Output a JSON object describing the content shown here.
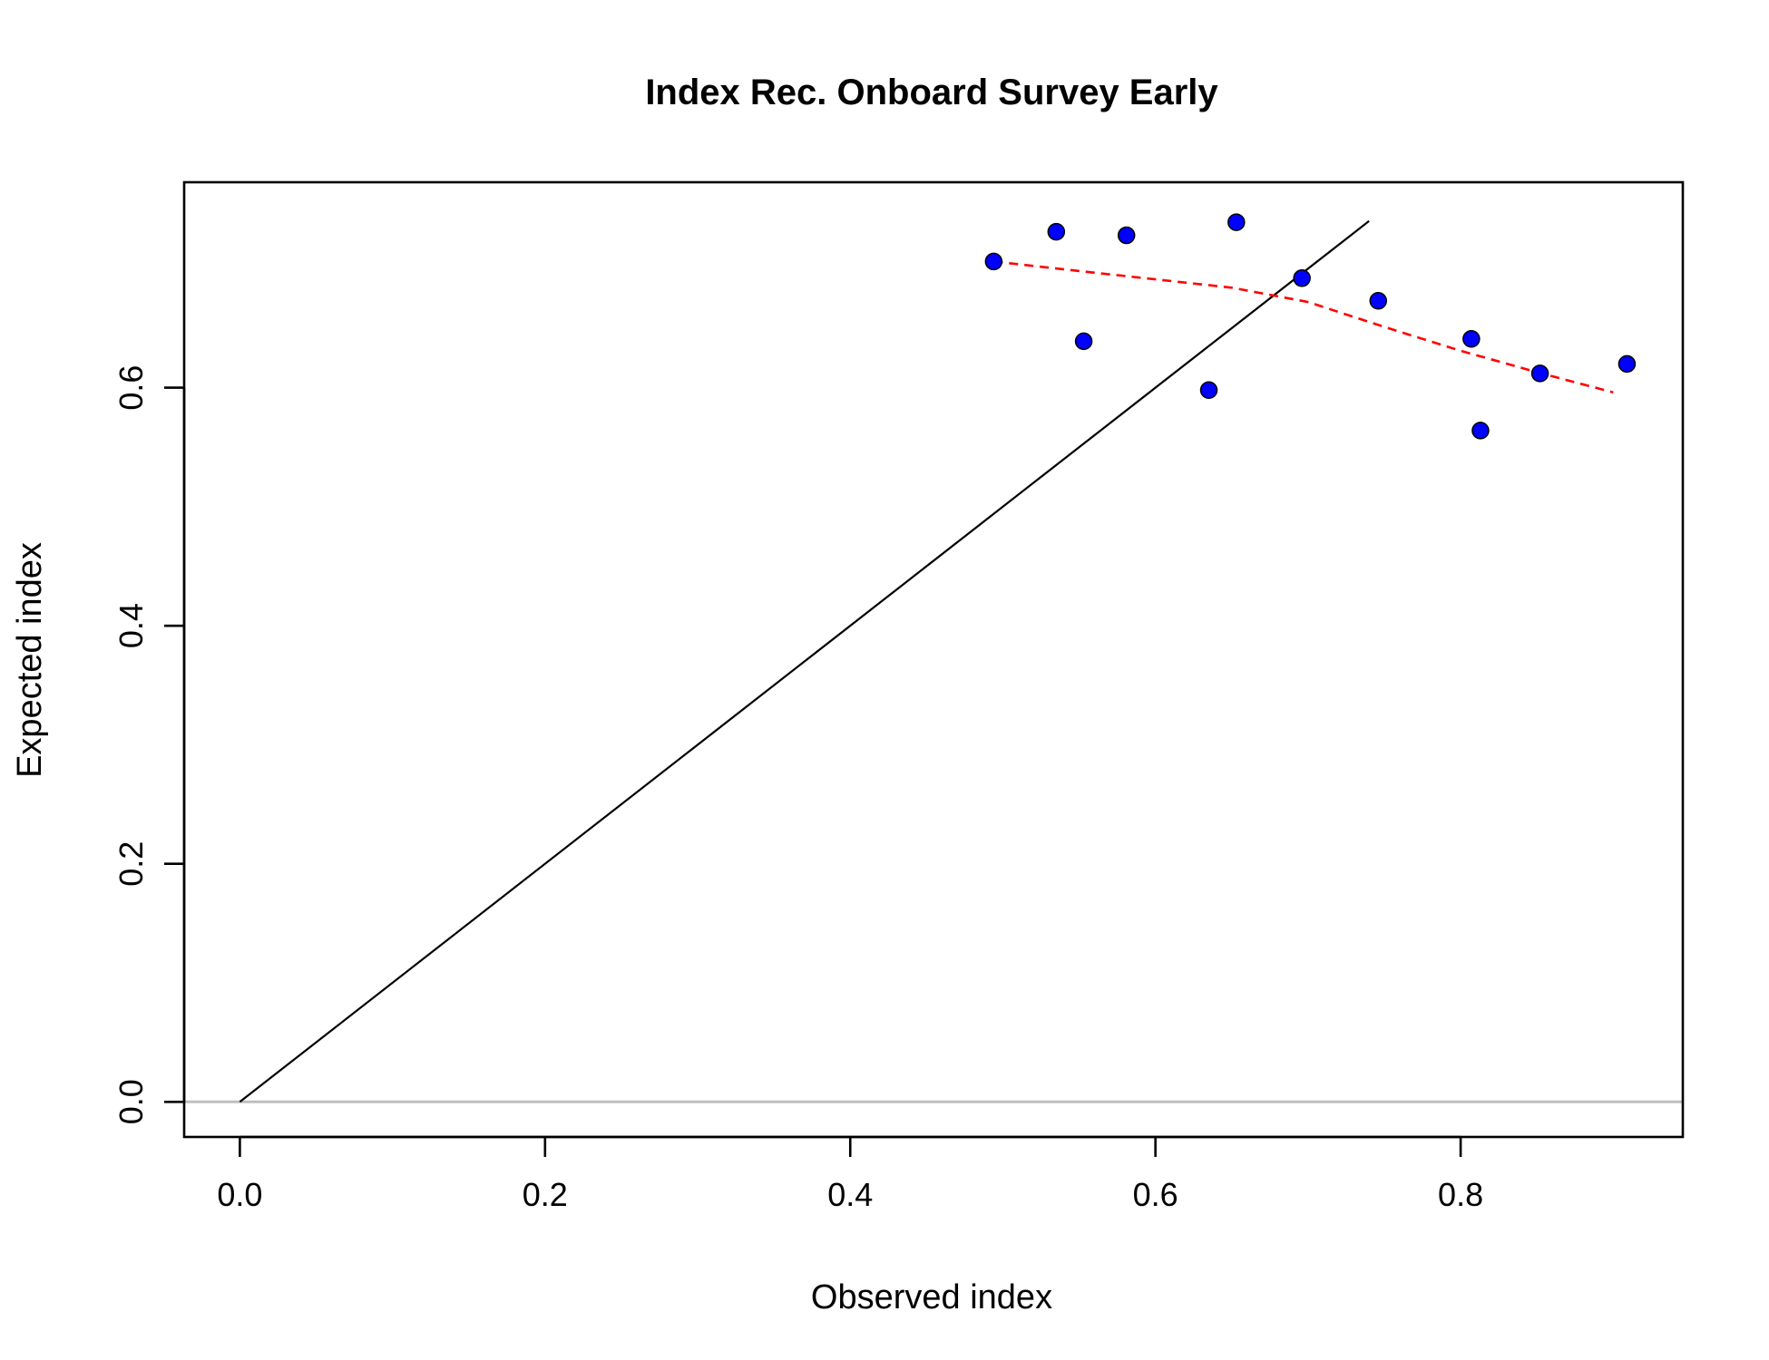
{
  "chart_data": {
    "type": "scatter",
    "title": "Index Rec. Onboard Survey Early",
    "xlabel": "Observed index",
    "ylabel": "Expected index",
    "xlim": [
      -0.0365,
      0.9456
    ],
    "ylim": [
      -0.0295,
      0.7726
    ],
    "xticks": [
      0.0,
      0.2,
      0.4,
      0.6,
      0.8
    ],
    "yticks": [
      0.0,
      0.2,
      0.4,
      0.6
    ],
    "xtick_labels": [
      "0.0",
      "0.2",
      "0.4",
      "0.6",
      "0.8"
    ],
    "ytick_labels": [
      "0.0",
      "0.2",
      "0.4",
      "0.6"
    ],
    "grid": false,
    "points": [
      {
        "x": 0.494,
        "y": 0.706
      },
      {
        "x": 0.535,
        "y": 0.731
      },
      {
        "x": 0.553,
        "y": 0.639
      },
      {
        "x": 0.581,
        "y": 0.728
      },
      {
        "x": 0.635,
        "y": 0.598
      },
      {
        "x": 0.653,
        "y": 0.739
      },
      {
        "x": 0.696,
        "y": 0.692
      },
      {
        "x": 0.746,
        "y": 0.673
      },
      {
        "x": 0.807,
        "y": 0.641
      },
      {
        "x": 0.813,
        "y": 0.564
      },
      {
        "x": 0.852,
        "y": 0.612
      },
      {
        "x": 0.909,
        "y": 0.62
      }
    ],
    "smoother": {
      "x": [
        0.494,
        0.55,
        0.6,
        0.65,
        0.7,
        0.75,
        0.8,
        0.85,
        0.9
      ],
      "y": [
        0.706,
        0.698,
        0.691,
        0.684,
        0.672,
        0.651,
        0.631,
        0.613,
        0.596
      ]
    },
    "identity_line": {
      "x": [
        0.0,
        0.74
      ],
      "y": [
        0.0,
        0.74
      ]
    },
    "zero_line": {
      "y": 0.0
    },
    "colors": {
      "points_fill": "#0000ff",
      "points_stroke": "#000000",
      "smoother": "#ff0000",
      "identity": "#000000",
      "zero_line": "#bebebe"
    }
  }
}
